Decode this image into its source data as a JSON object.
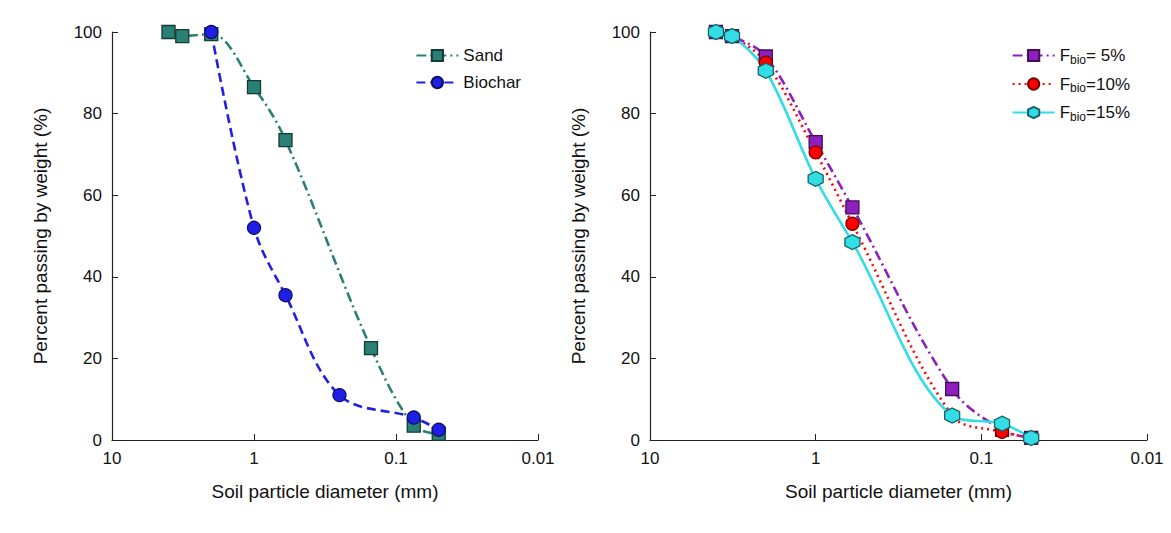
{
  "chart_data": [
    {
      "type": "line",
      "xlabel": "Soil particle diameter (mm)",
      "ylabel": "Percent passing by weight (%)",
      "log": "x",
      "xlim": [
        10,
        0.01
      ],
      "xticks": [
        10,
        1,
        0.1,
        0.01
      ],
      "ylim": [
        0,
        100
      ],
      "yticks": [
        0,
        20,
        40,
        60,
        80,
        100
      ],
      "grid": false,
      "legend": "upper right",
      "series": [
        {
          "name": "Sand",
          "color": "#2a8075",
          "marker": "square",
          "line_style": "dashdot",
          "x": [
            4,
            3.2,
            2,
            1,
            0.6,
            0.15,
            0.075,
            0.05
          ],
          "values": [
            100,
            99,
            99.5,
            86.5,
            73.5,
            22.5,
            3.5,
            1.5
          ]
        },
        {
          "name": "Biochar",
          "color": "#1f1fe6",
          "marker": "circle",
          "line_style": "dashed",
          "x": [
            2,
            1,
            0.6,
            0.25,
            0.075,
            0.05
          ],
          "values": [
            100,
            52,
            35.5,
            11,
            5.5,
            2.5
          ]
        }
      ]
    },
    {
      "type": "line",
      "xlabel": "Soil particle diameter (mm)",
      "ylabel": "Percent passing by weight (%)",
      "log": "x",
      "xlim": [
        10,
        0.01
      ],
      "xticks": [
        10,
        1,
        0.1,
        0.01
      ],
      "ylim": [
        0,
        100
      ],
      "yticks": [
        0,
        20,
        40,
        60,
        80,
        100
      ],
      "grid": false,
      "legend": "upper right",
      "series": [
        {
          "name": "Fbio= 5%",
          "color": "#8e1fbf",
          "marker": "square",
          "line_style": "dashdot",
          "x": [
            4,
            3.2,
            2,
            1,
            0.6,
            0.15,
            0.075,
            0.05
          ],
          "values": [
            100,
            99,
            94,
            73,
            57,
            12.5,
            2.5,
            0.5
          ]
        },
        {
          "name": "Fbio=10%",
          "color": "#ff0000",
          "marker": "circle",
          "line_style": "dotted",
          "x": [
            4,
            3.2,
            2,
            1,
            0.6,
            0.15,
            0.075,
            0.05
          ],
          "values": [
            100,
            99,
            92.5,
            70.5,
            53,
            6,
            2,
            0.5
          ]
        },
        {
          "name": "Fbio=15%",
          "color": "#33dde6",
          "marker": "hexagon",
          "line_style": "solid",
          "x": [
            4,
            3.2,
            2,
            1,
            0.6,
            0.15,
            0.075,
            0.05
          ],
          "values": [
            100,
            99,
            90.5,
            64,
            48.5,
            6,
            4,
            0.5
          ]
        }
      ]
    }
  ]
}
